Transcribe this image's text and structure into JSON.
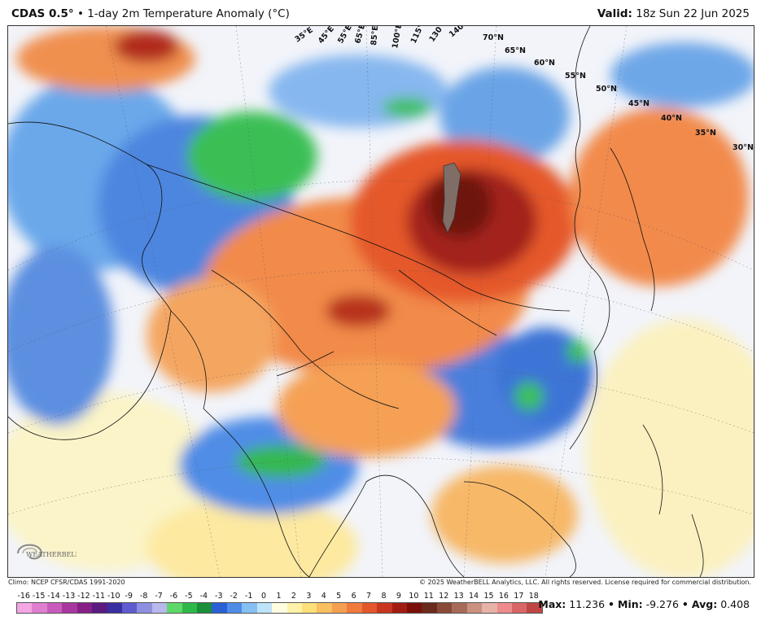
{
  "header": {
    "model": "CDAS 0.5",
    "degree": "°",
    "bullet": "•",
    "product": "1-day 2m Temperature Anomaly (°C)",
    "valid_label": "Valid:",
    "valid_value": "18z Sun 22 Jun 2025"
  },
  "map": {
    "lat_labels": [
      "70°N",
      "65°N",
      "60°N",
      "55°N",
      "50°N",
      "45°N",
      "40°N",
      "35°N",
      "30°N"
    ],
    "lon_labels": [
      "35°E",
      "45°E",
      "55°E",
      "65°E",
      "85°E",
      "100°E",
      "115°E",
      "130°E",
      "140°E"
    ]
  },
  "footer": {
    "climo": "Climo: NCEP CFSR/CDAS 1991-2020",
    "copyright": "© 2025 WeatherBELL Analytics, LLC. All rights reserved. License required for commercial distribution."
  },
  "logo": {
    "text": "WEATHERBELL",
    "icon": "swirl-logo-icon"
  },
  "legend": {
    "labels": [
      "-16",
      "-15",
      "-14",
      "-13",
      "-12",
      "-11",
      "-10",
      "-9",
      "-8",
      "-7",
      "-6",
      "-5",
      "-4",
      "-3",
      "-2",
      "-1",
      "0",
      "1",
      "2",
      "3",
      "4",
      "5",
      "6",
      "7",
      "8",
      "9",
      "10",
      "11",
      "12",
      "13",
      "14",
      "15",
      "16",
      "17",
      "18"
    ],
    "colors": [
      "#f4a6e3",
      "#e07fd0",
      "#c95bbd",
      "#a9379f",
      "#862086",
      "#5a1a80",
      "#3a2fa0",
      "#5f5bd0",
      "#8f8fe0",
      "#b8b8ec",
      "#5fd86a",
      "#2fb84a",
      "#1a8f3a",
      "#2a5fd6",
      "#4d8de8",
      "#86bff2",
      "#bfe3f8",
      "#fffde0",
      "#fff2a8",
      "#fde07a",
      "#f9c060",
      "#f5a050",
      "#ef7b3c",
      "#e3572c",
      "#c8361e",
      "#a31c13",
      "#7a0f0a",
      "#6b2a1e",
      "#8a4a38",
      "#a86a58",
      "#c9917e",
      "#e7b3a8",
      "#ee8c8c",
      "#d86666",
      "#c04646"
    ]
  },
  "stats": {
    "max_label": "Max:",
    "max_value": "11.236",
    "min_label": "Min:",
    "min_value": "-9.276",
    "avg_label": "Avg:",
    "avg_value": "0.408",
    "sep": "•"
  }
}
